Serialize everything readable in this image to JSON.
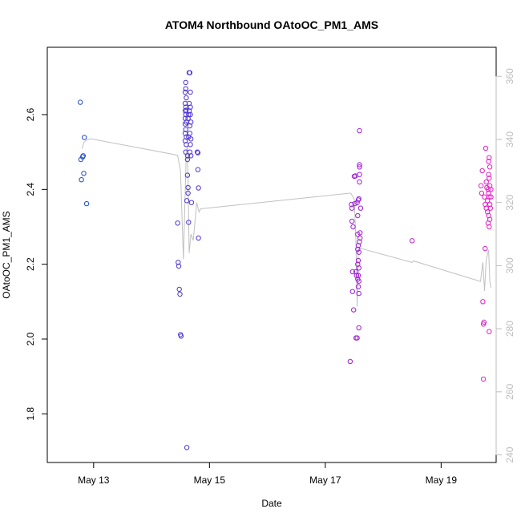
{
  "chart_data": {
    "type": "scatter",
    "title": "ATOM4 Northbound OAtoOC_PM1_AMS",
    "xlabel": "Date",
    "ylabel": "OAtoOC_PM1_AMS",
    "x_ticks": [
      "May 13",
      "May 15",
      "May 17",
      "May 19"
    ],
    "x_tick_days": [
      13,
      15,
      17,
      19
    ],
    "xlim": [
      12.2,
      19.95
    ],
    "y_ticks": [
      "1.8",
      "2.0",
      "2.2",
      "2.4",
      "2.6"
    ],
    "y_tick_values": [
      1.8,
      2.0,
      2.2,
      2.4,
      2.6
    ],
    "ylim": [
      1.67,
      2.78
    ],
    "y2_ticks": [
      "240",
      "260",
      "280",
      "300",
      "320",
      "340",
      "360"
    ],
    "y2_tick_values": [
      240,
      260,
      280,
      300,
      320,
      340,
      360
    ],
    "y2lim": [
      237.6,
      369.2
    ],
    "colors": {
      "start": "#1f4fc8",
      "mid": "#7a20e0",
      "end": "#e61ec8",
      "line": "#c0c0c0",
      "frame": "#000000",
      "right_axis": "#bdbdbd"
    },
    "points": [
      {
        "x": 12.77,
        "y": 2.633
      },
      {
        "x": 12.78,
        "y": 2.48
      },
      {
        "x": 12.79,
        "y": 2.426
      },
      {
        "x": 12.81,
        "y": 2.487
      },
      {
        "x": 12.82,
        "y": 2.49
      },
      {
        "x": 12.83,
        "y": 2.443
      },
      {
        "x": 12.84,
        "y": 2.539
      },
      {
        "x": 12.88,
        "y": 2.362
      },
      {
        "x": 14.45,
        "y": 2.31
      },
      {
        "x": 14.46,
        "y": 2.205
      },
      {
        "x": 14.47,
        "y": 2.195
      },
      {
        "x": 14.48,
        "y": 2.133
      },
      {
        "x": 14.49,
        "y": 2.12
      },
      {
        "x": 14.5,
        "y": 2.012
      },
      {
        "x": 14.51,
        "y": 2.008
      },
      {
        "x": 14.58,
        "y": 2.66
      },
      {
        "x": 14.58,
        "y": 2.63
      },
      {
        "x": 14.58,
        "y": 2.61
      },
      {
        "x": 14.58,
        "y": 2.59
      },
      {
        "x": 14.58,
        "y": 2.575
      },
      {
        "x": 14.58,
        "y": 2.55
      },
      {
        "x": 14.58,
        "y": 2.53
      },
      {
        "x": 14.59,
        "y": 2.686
      },
      {
        "x": 14.59,
        "y": 2.669
      },
      {
        "x": 14.59,
        "y": 2.62
      },
      {
        "x": 14.59,
        "y": 2.6
      },
      {
        "x": 14.59,
        "y": 2.56
      },
      {
        "x": 14.59,
        "y": 2.5
      },
      {
        "x": 14.6,
        "y": 2.645
      },
      {
        "x": 14.6,
        "y": 2.612
      },
      {
        "x": 14.6,
        "y": 2.58
      },
      {
        "x": 14.6,
        "y": 2.54
      },
      {
        "x": 14.6,
        "y": 2.52
      },
      {
        "x": 14.61,
        "y": 2.37
      },
      {
        "x": 14.61,
        "y": 1.71
      },
      {
        "x": 14.62,
        "y": 2.49
      },
      {
        "x": 14.62,
        "y": 2.48
      },
      {
        "x": 14.62,
        "y": 2.438
      },
      {
        "x": 14.63,
        "y": 2.405
      },
      {
        "x": 14.63,
        "y": 2.39
      },
      {
        "x": 14.63,
        "y": 2.59
      },
      {
        "x": 14.64,
        "y": 2.6
      },
      {
        "x": 14.64,
        "y": 2.54
      },
      {
        "x": 14.64,
        "y": 2.312
      },
      {
        "x": 14.65,
        "y": 2.712
      },
      {
        "x": 14.65,
        "y": 2.63
      },
      {
        "x": 14.65,
        "y": 2.61
      },
      {
        "x": 14.66,
        "y": 2.712
      },
      {
        "x": 14.66,
        "y": 2.57
      },
      {
        "x": 14.66,
        "y": 2.55
      },
      {
        "x": 14.66,
        "y": 2.5
      },
      {
        "x": 14.67,
        "y": 2.66
      },
      {
        "x": 14.67,
        "y": 2.62
      },
      {
        "x": 14.67,
        "y": 2.6
      },
      {
        "x": 14.67,
        "y": 2.52
      },
      {
        "x": 14.68,
        "y": 2.58
      },
      {
        "x": 14.68,
        "y": 2.535
      },
      {
        "x": 14.68,
        "y": 2.49
      },
      {
        "x": 14.69,
        "y": 2.365
      },
      {
        "x": 14.79,
        "y": 2.5
      },
      {
        "x": 14.8,
        "y": 2.498
      },
      {
        "x": 14.8,
        "y": 2.453
      },
      {
        "x": 14.81,
        "y": 2.404
      },
      {
        "x": 14.81,
        "y": 2.27
      },
      {
        "x": 17.43,
        "y": 1.94
      },
      {
        "x": 17.45,
        "y": 2.36
      },
      {
        "x": 17.46,
        "y": 2.35
      },
      {
        "x": 17.46,
        "y": 2.315
      },
      {
        "x": 17.47,
        "y": 2.18
      },
      {
        "x": 17.47,
        "y": 2.127
      },
      {
        "x": 17.48,
        "y": 2.3
      },
      {
        "x": 17.49,
        "y": 2.078
      },
      {
        "x": 17.5,
        "y": 2.435
      },
      {
        "x": 17.51,
        "y": 2.362
      },
      {
        "x": 17.52,
        "y": 2.436
      },
      {
        "x": 17.53,
        "y": 2.003
      },
      {
        "x": 17.53,
        "y": 2.18
      },
      {
        "x": 17.54,
        "y": 2.17
      },
      {
        "x": 17.55,
        "y": 2.003
      },
      {
        "x": 17.55,
        "y": 2.365
      },
      {
        "x": 17.56,
        "y": 2.33
      },
      {
        "x": 17.56,
        "y": 2.28
      },
      {
        "x": 17.56,
        "y": 2.24
      },
      {
        "x": 17.56,
        "y": 2.2
      },
      {
        "x": 17.56,
        "y": 2.16
      },
      {
        "x": 17.57,
        "y": 2.372
      },
      {
        "x": 17.57,
        "y": 2.25
      },
      {
        "x": 17.57,
        "y": 2.21
      },
      {
        "x": 17.57,
        "y": 2.17
      },
      {
        "x": 17.57,
        "y": 2.14
      },
      {
        "x": 17.58,
        "y": 2.375
      },
      {
        "x": 17.58,
        "y": 2.232
      },
      {
        "x": 17.58,
        "y": 2.19
      },
      {
        "x": 17.58,
        "y": 2.155
      },
      {
        "x": 17.58,
        "y": 2.122
      },
      {
        "x": 17.58,
        "y": 2.03
      },
      {
        "x": 17.59,
        "y": 2.557
      },
      {
        "x": 17.59,
        "y": 2.466
      },
      {
        "x": 17.59,
        "y": 2.46
      },
      {
        "x": 17.59,
        "y": 2.44
      },
      {
        "x": 17.59,
        "y": 2.42
      },
      {
        "x": 17.59,
        "y": 2.26
      },
      {
        "x": 17.6,
        "y": 2.284
      },
      {
        "x": 17.6,
        "y": 2.27
      },
      {
        "x": 17.61,
        "y": 2.35
      },
      {
        "x": 18.5,
        "y": 2.263
      },
      {
        "x": 19.69,
        "y": 2.41
      },
      {
        "x": 19.7,
        "y": 2.39
      },
      {
        "x": 19.71,
        "y": 2.45
      },
      {
        "x": 19.72,
        "y": 2.1
      },
      {
        "x": 19.73,
        "y": 1.893
      },
      {
        "x": 19.73,
        "y": 2.04
      },
      {
        "x": 19.74,
        "y": 2.045
      },
      {
        "x": 19.75,
        "y": 2.38
      },
      {
        "x": 19.76,
        "y": 2.242
      },
      {
        "x": 19.76,
        "y": 2.36
      },
      {
        "x": 19.77,
        "y": 2.51
      },
      {
        "x": 19.78,
        "y": 2.42
      },
      {
        "x": 19.78,
        "y": 2.35
      },
      {
        "x": 19.79,
        "y": 2.405
      },
      {
        "x": 19.8,
        "y": 2.37
      },
      {
        "x": 19.8,
        "y": 2.34
      },
      {
        "x": 19.81,
        "y": 2.4
      },
      {
        "x": 19.81,
        "y": 2.31
      },
      {
        "x": 19.82,
        "y": 2.475
      },
      {
        "x": 19.82,
        "y": 2.44
      },
      {
        "x": 19.82,
        "y": 2.39
      },
      {
        "x": 19.82,
        "y": 2.33
      },
      {
        "x": 19.83,
        "y": 2.485
      },
      {
        "x": 19.83,
        "y": 2.43
      },
      {
        "x": 19.83,
        "y": 2.38
      },
      {
        "x": 19.83,
        "y": 2.3
      },
      {
        "x": 19.83,
        "y": 2.02
      },
      {
        "x": 19.84,
        "y": 2.46
      },
      {
        "x": 19.84,
        "y": 2.41
      },
      {
        "x": 19.84,
        "y": 2.36
      },
      {
        "x": 19.84,
        "y": 2.32
      },
      {
        "x": 19.85,
        "y": 2.35
      },
      {
        "x": 19.86,
        "y": 2.4
      },
      {
        "x": 19.86,
        "y": 2.38
      }
    ],
    "line_y2": [
      {
        "x": 12.8,
        "y2": 337
      },
      {
        "x": 12.83,
        "y2": 339
      },
      {
        "x": 12.88,
        "y2": 339.8
      },
      {
        "x": 12.95,
        "y2": 340.2
      },
      {
        "x": 14.45,
        "y2": 335
      },
      {
        "x": 14.5,
        "y2": 330
      },
      {
        "x": 14.55,
        "y2": 302
      },
      {
        "x": 14.6,
        "y2": 336
      },
      {
        "x": 14.62,
        "y2": 338
      },
      {
        "x": 14.65,
        "y2": 304
      },
      {
        "x": 14.68,
        "y2": 310
      },
      {
        "x": 14.72,
        "y2": 308
      },
      {
        "x": 14.78,
        "y2": 320
      },
      {
        "x": 14.82,
        "y2": 317
      },
      {
        "x": 14.85,
        "y2": 318
      },
      {
        "x": 17.44,
        "y2": 323
      },
      {
        "x": 17.5,
        "y2": 321
      },
      {
        "x": 17.53,
        "y2": 307
      },
      {
        "x": 17.55,
        "y2": 287
      },
      {
        "x": 17.57,
        "y2": 305
      },
      {
        "x": 17.6,
        "y2": 305.5
      },
      {
        "x": 18.5,
        "y2": 301
      },
      {
        "x": 18.52,
        "y2": 301.5
      },
      {
        "x": 19.68,
        "y2": 295
      },
      {
        "x": 19.72,
        "y2": 301
      },
      {
        "x": 19.75,
        "y2": 292
      },
      {
        "x": 19.78,
        "y2": 302
      },
      {
        "x": 19.82,
        "y2": 305
      },
      {
        "x": 19.84,
        "y2": 295
      },
      {
        "x": 19.86,
        "y2": 293
      }
    ]
  }
}
